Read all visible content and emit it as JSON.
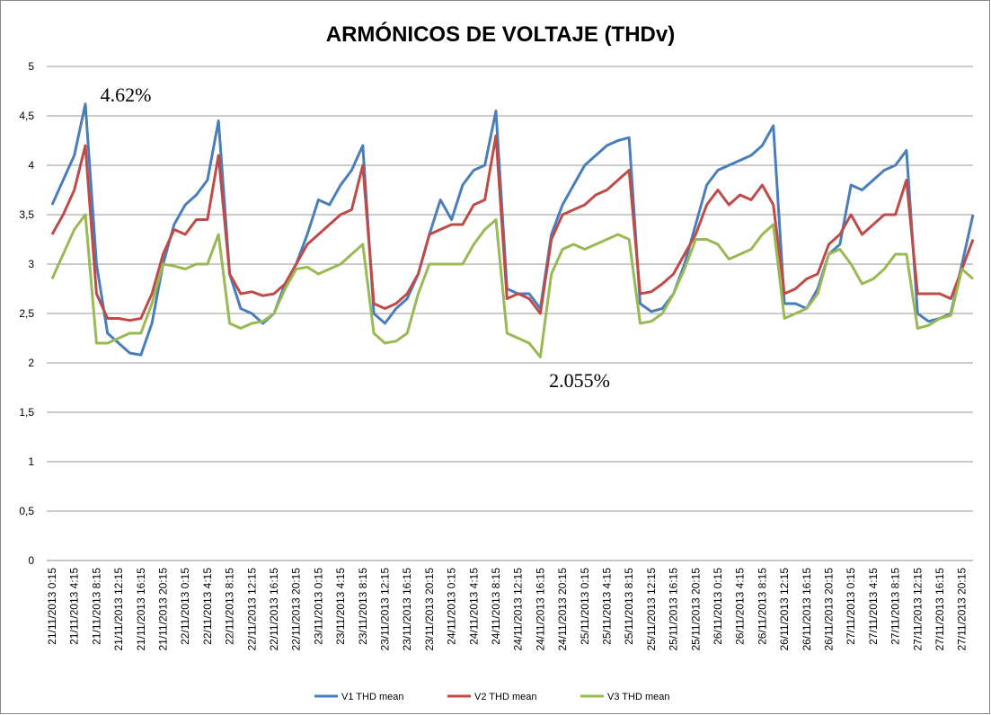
{
  "chart_data": {
    "type": "line",
    "title": "ARMÓNICOS DE VOLTAJE  (THDv)",
    "categories": [
      "21/11/2013 0:15",
      null,
      "21/11/2013 4:15",
      null,
      "21/11/2013 8:15",
      null,
      "21/11/2013 12:15",
      null,
      "21/11/2013 16:15",
      null,
      "21/11/2013 20:15",
      null,
      "22/11/2013 0:15",
      null,
      "22/11/2013 4:15",
      null,
      "22/11/2013 8:15",
      null,
      "22/11/2013 12:15",
      null,
      "22/11/2013 16:15",
      null,
      "22/11/2013 20:15",
      null,
      "23/11/2013 0:15",
      null,
      "23/11/2013 4:15",
      null,
      "23/11/2013 8:15",
      null,
      "23/11/2013 12:15",
      null,
      "23/11/2013 16:15",
      null,
      "23/11/2013 20:15",
      null,
      "24/11/2013 0:15",
      null,
      "24/11/2013 4:15",
      null,
      "24/11/2013 8:15",
      null,
      "24/11/2013 12:15",
      null,
      "24/11/2013 16:15",
      null,
      "24/11/2013 20:15",
      null,
      "25/11/2013 0:15",
      null,
      "25/11/2013 4:15",
      null,
      "25/11/2013 8:15",
      null,
      "25/11/2013 12:15",
      null,
      "25/11/2013 16:15",
      null,
      "25/11/2013 20:15",
      null,
      "26/11/2013 0:15",
      null,
      "26/11/2013 4:15",
      null,
      "26/11/2013 8:15",
      null,
      "26/11/2013 12:15",
      null,
      "26/11/2013 16:15",
      null,
      "26/11/2013 20:15",
      null,
      "27/11/2013 0:15",
      null,
      "27/11/2013 4:15",
      null,
      "27/11/2013 8:15",
      null,
      "27/11/2013 12:15",
      null,
      "27/11/2013 16:15",
      null,
      "27/11/2013 20:15",
      null
    ],
    "series": [
      {
        "name": "V1 THD mean",
        "color": "#4a7ebb",
        "values": [
          3.6,
          3.85,
          4.1,
          4.62,
          3.0,
          2.3,
          2.2,
          2.1,
          2.08,
          2.4,
          3.0,
          3.4,
          3.6,
          3.7,
          3.85,
          4.45,
          2.9,
          2.55,
          2.5,
          2.4,
          2.5,
          2.8,
          3.0,
          3.3,
          3.65,
          3.6,
          3.8,
          3.95,
          4.2,
          2.5,
          2.4,
          2.55,
          2.65,
          2.9,
          3.3,
          3.65,
          3.45,
          3.8,
          3.95,
          4.0,
          4.55,
          2.75,
          2.7,
          2.7,
          2.55,
          3.3,
          3.6,
          3.8,
          4.0,
          4.1,
          4.2,
          4.25,
          4.28,
          2.6,
          2.52,
          2.55,
          2.7,
          3.0,
          3.4,
          3.8,
          3.95,
          4.0,
          4.05,
          4.1,
          4.2,
          4.4,
          2.6,
          2.6,
          2.55,
          2.75,
          3.1,
          3.2,
          3.8,
          3.75,
          3.85,
          3.95,
          4.0,
          4.15,
          2.5,
          2.42,
          2.45,
          2.5,
          3.0,
          3.5
        ]
      },
      {
        "name": "V2 THD mean",
        "color": "#be4b48",
        "values": [
          3.3,
          3.5,
          3.75,
          4.2,
          2.7,
          2.45,
          2.45,
          2.43,
          2.45,
          2.7,
          3.1,
          3.35,
          3.3,
          3.45,
          3.45,
          4.1,
          2.9,
          2.7,
          2.72,
          2.68,
          2.7,
          2.8,
          3.0,
          3.2,
          3.3,
          3.4,
          3.5,
          3.55,
          4.0,
          2.6,
          2.55,
          2.6,
          2.7,
          2.9,
          3.3,
          3.35,
          3.4,
          3.4,
          3.6,
          3.65,
          4.3,
          2.65,
          2.7,
          2.65,
          2.5,
          3.25,
          3.5,
          3.55,
          3.6,
          3.7,
          3.75,
          3.85,
          3.95,
          2.7,
          2.72,
          2.8,
          2.9,
          3.1,
          3.3,
          3.6,
          3.75,
          3.6,
          3.7,
          3.65,
          3.8,
          3.6,
          2.7,
          2.75,
          2.85,
          2.9,
          3.2,
          3.3,
          3.5,
          3.3,
          3.4,
          3.5,
          3.5,
          3.85,
          2.7,
          2.7,
          2.7,
          2.65,
          2.95,
          3.25
        ]
      },
      {
        "name": "V3 THD mean",
        "color": "#98b954",
        "values": [
          2.85,
          3.1,
          3.35,
          3.5,
          2.2,
          2.2,
          2.25,
          2.3,
          2.3,
          2.6,
          3.0,
          2.98,
          2.95,
          3.0,
          3.0,
          3.3,
          2.4,
          2.35,
          2.4,
          2.42,
          2.5,
          2.75,
          2.95,
          2.97,
          2.9,
          2.95,
          3.0,
          3.1,
          3.2,
          2.3,
          2.2,
          2.22,
          2.3,
          2.7,
          3.0,
          3.0,
          3.0,
          3.0,
          3.2,
          3.35,
          3.45,
          2.3,
          2.25,
          2.2,
          2.06,
          2.9,
          3.15,
          3.2,
          3.15,
          3.2,
          3.25,
          3.3,
          3.25,
          2.4,
          2.42,
          2.5,
          2.7,
          2.95,
          3.25,
          3.25,
          3.2,
          3.05,
          3.1,
          3.15,
          3.3,
          3.4,
          2.45,
          2.5,
          2.55,
          2.7,
          3.1,
          3.15,
          3.0,
          2.8,
          2.85,
          2.95,
          3.1,
          3.1,
          2.35,
          2.38,
          2.45,
          2.48,
          2.95,
          2.85
        ]
      }
    ],
    "ylim": [
      0,
      5
    ],
    "yticks": [
      0,
      {
        "value": 0.5,
        "label": "0,5"
      },
      1,
      {
        "value": 1.5,
        "label": "1,5"
      },
      2,
      {
        "value": 2.5,
        "label": "2,5"
      },
      3,
      {
        "value": 3.5,
        "label": "3,5"
      },
      4,
      {
        "value": 4.5,
        "label": "4,5"
      },
      5
    ],
    "grid": true,
    "legend": "bottom",
    "annotations": [
      "4.62%",
      "2.055%"
    ]
  }
}
